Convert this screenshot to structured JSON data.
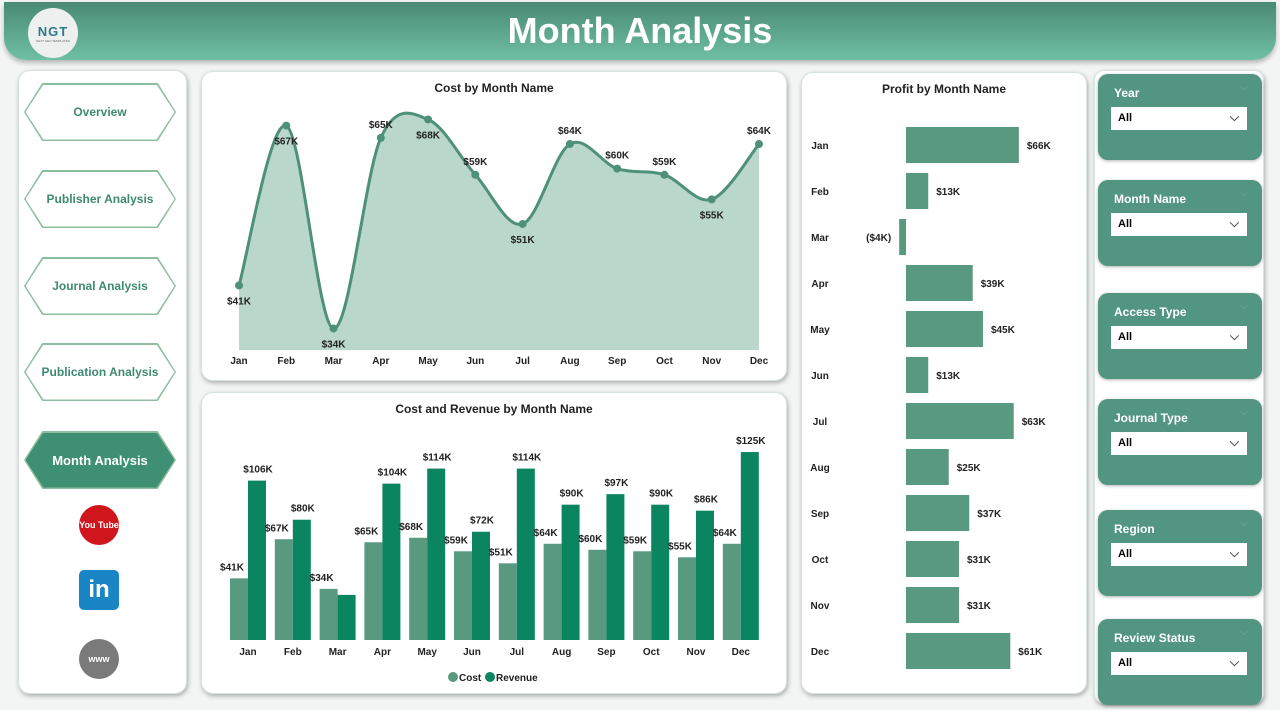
{
  "header": {
    "title": "Month Analysis",
    "logo_text": "NGT",
    "logo_subtext": "NEXT GEN TEMPLATES"
  },
  "nav": {
    "items": [
      {
        "label": "Overview"
      },
      {
        "label": "Publisher Analysis"
      },
      {
        "label": "Journal Analysis"
      },
      {
        "label": "Publication Analysis"
      },
      {
        "label": "Month Analysis",
        "active": true
      }
    ],
    "social": [
      {
        "icon": "youtube-icon",
        "text": "You Tube"
      },
      {
        "icon": "linkedin-icon",
        "text": "in"
      },
      {
        "icon": "globe-icon",
        "text": "www"
      }
    ]
  },
  "colors": {
    "accent": "#3f8f74",
    "cost": "#58997f",
    "revenue": "#0b8460",
    "area": "#b9d7cb"
  },
  "chart_data": [
    {
      "type": "area",
      "title": "Cost by Month Name",
      "categories": [
        "Jan",
        "Feb",
        "Mar",
        "Apr",
        "May",
        "Jun",
        "Jul",
        "Aug",
        "Sep",
        "Oct",
        "Nov",
        "Dec"
      ],
      "values": [
        41,
        67,
        34,
        65,
        68,
        59,
        51,
        64,
        60,
        59,
        55,
        64
      ],
      "labels": [
        "$41K",
        "$67K",
        "$34K",
        "$65K",
        "$68K",
        "$59K",
        "$51K",
        "$64K",
        "$60K",
        "$59K",
        "$55K",
        "$64K"
      ],
      "unit": "$K",
      "ylim": [
        30.5,
        71
      ]
    },
    {
      "type": "bar",
      "title": "Cost and Revenue by Month Name",
      "categories": [
        "Jan",
        "Feb",
        "Mar",
        "Apr",
        "May",
        "Jun",
        "Jul",
        "Aug",
        "Sep",
        "Oct",
        "Nov",
        "Dec"
      ],
      "series": [
        {
          "name": "Cost",
          "values": [
            41,
            67,
            34,
            65,
            68,
            59,
            51,
            64,
            60,
            59,
            55,
            64
          ],
          "labels": [
            "$41K",
            "$67K",
            "$34K",
            "$65K",
            "$68K",
            "$59K",
            "$51K",
            "$64K",
            "$60K",
            "$59K",
            "$55K",
            "$64K"
          ]
        },
        {
          "name": "Revenue",
          "values": [
            106,
            80,
            30,
            104,
            114,
            72,
            114,
            90,
            97,
            90,
            86,
            125
          ],
          "labels": [
            "$106K",
            "$80K",
            "",
            "$104K",
            "$114K",
            "$72K",
            "$114K",
            "$90K",
            "$97K",
            "$90K",
            "$86K",
            "$125K"
          ]
        }
      ],
      "legend": "bottom",
      "ylim": [
        0,
        139
      ]
    },
    {
      "type": "bar",
      "orientation": "horizontal",
      "title": "Profit by Month Name",
      "categories": [
        "Jan",
        "Feb",
        "Mar",
        "Apr",
        "May",
        "Jun",
        "Jul",
        "Aug",
        "Sep",
        "Oct",
        "Nov",
        "Dec"
      ],
      "values": [
        66,
        13,
        -4,
        39,
        45,
        13,
        63,
        25,
        37,
        31,
        31,
        61
      ],
      "labels": [
        "$66K",
        "$13K",
        "($4K)",
        "$39K",
        "$45K",
        "$13K",
        "$63K",
        "$25K",
        "$37K",
        "$31K",
        "$31K",
        "$61K"
      ]
    }
  ],
  "slicers": [
    {
      "label": "Year",
      "value": "All"
    },
    {
      "label": "Month Name",
      "value": "All"
    },
    {
      "label": "Access Type",
      "value": "All"
    },
    {
      "label": "Journal Type",
      "value": "All"
    },
    {
      "label": "Region",
      "value": "All"
    },
    {
      "label": "Review Status",
      "value": "All"
    }
  ]
}
